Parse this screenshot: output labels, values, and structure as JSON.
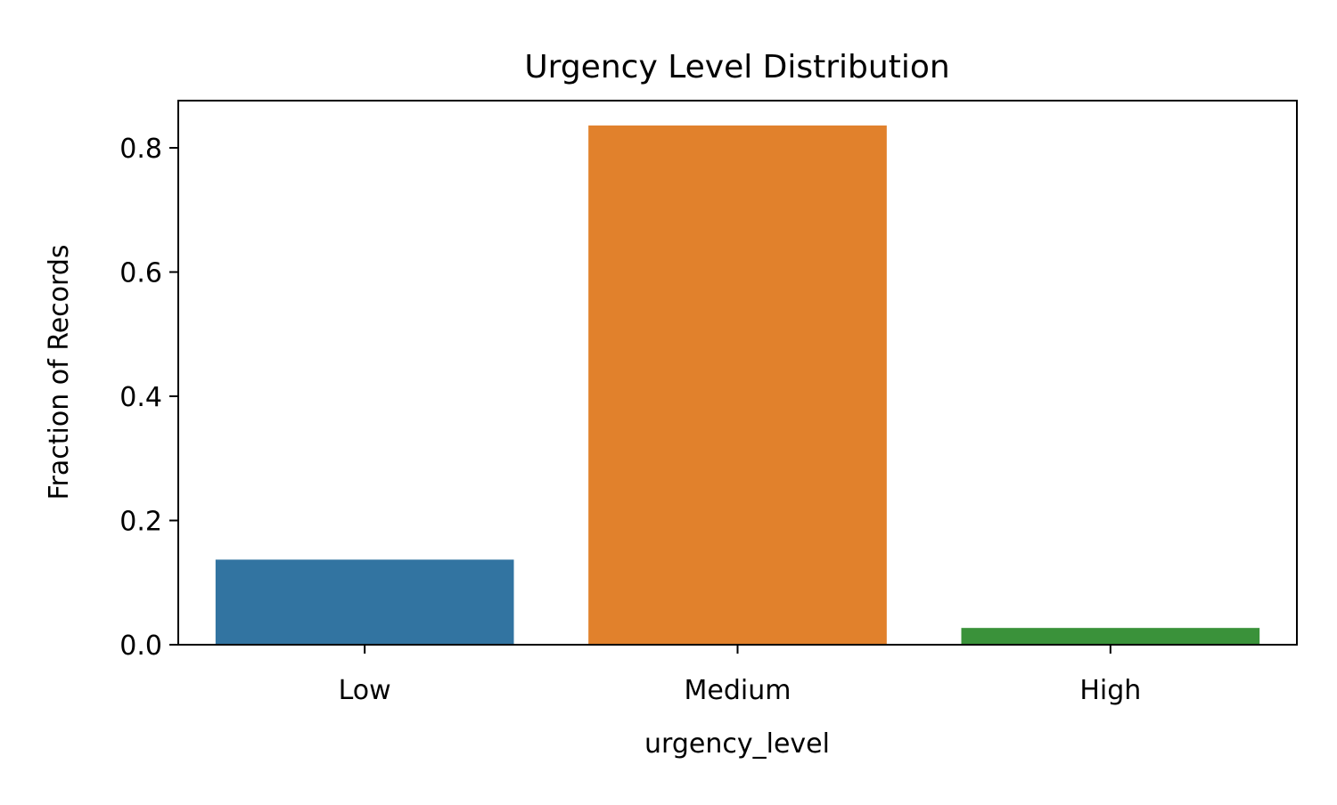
{
  "chart_data": {
    "type": "bar",
    "title": "Urgency Level Distribution",
    "xlabel": "urgency_level",
    "ylabel": "Fraction of Records",
    "categories": [
      "Low",
      "Medium",
      "High"
    ],
    "values": [
      0.137,
      0.836,
      0.027
    ],
    "colors": [
      "#3274a1",
      "#e1812c",
      "#3a923a"
    ],
    "ylim": [
      0,
      0.876
    ],
    "yticks": [
      0.0,
      0.2,
      0.4,
      0.6,
      0.8
    ],
    "ytick_labels": [
      "0.0",
      "0.2",
      "0.4",
      "0.6",
      "0.8"
    ],
    "grid": false,
    "legend": "none"
  }
}
